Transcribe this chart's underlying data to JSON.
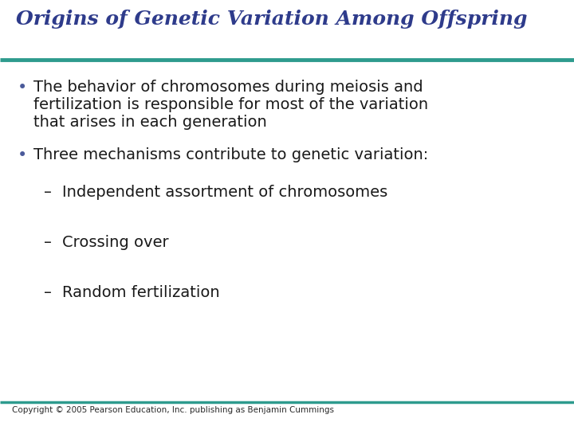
{
  "title": "Origins of Genetic Variation Among Offspring",
  "title_color": "#2E3B8B",
  "title_fontsize": 18,
  "background_color": "#FFFFFF",
  "line_color": "#2E9B8E",
  "bullet_dot_color": "#4A5A9A",
  "text_color": "#1A1A1A",
  "bullet1_line1": "The behavior of chromosomes during meiosis and",
  "bullet1_line2": "fertilization is responsible for most of the variation",
  "bullet1_line3": "that arises in each generation",
  "bullet2": "Three mechanisms contribute to genetic variation:",
  "sub1": "Independent assortment of chromosomes",
  "sub2": "Crossing over",
  "sub3": "Random fertilization",
  "footer": "Copyright © 2005 Pearson Education, Inc. publishing as Benjamin Cummings",
  "footer_color": "#2A2A2A",
  "footer_fontsize": 7.5,
  "text_fontsize": 14,
  "sub_fontsize": 14
}
